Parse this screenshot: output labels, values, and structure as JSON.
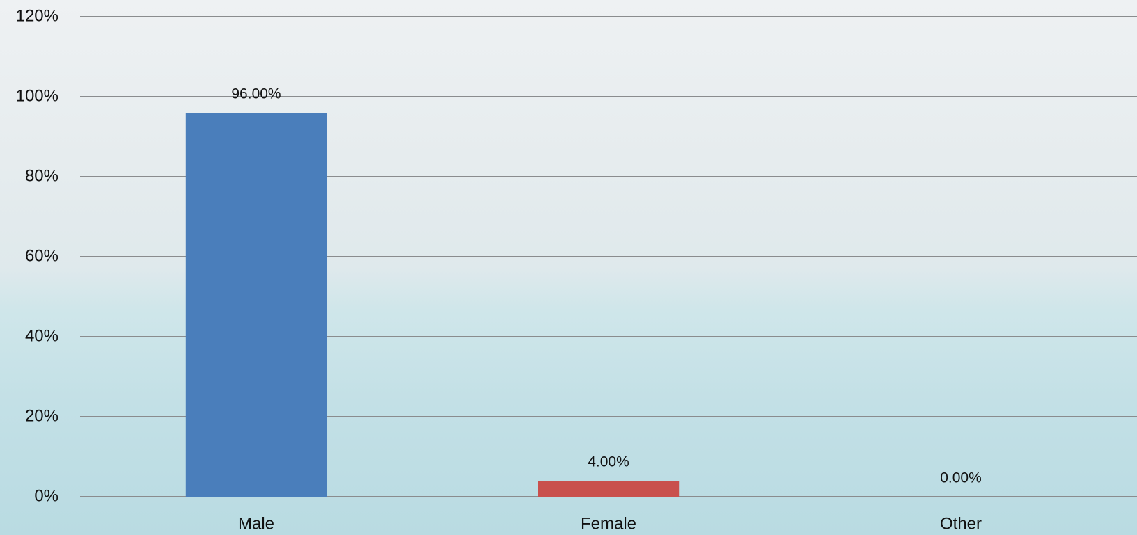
{
  "chart_data": {
    "type": "bar",
    "categories": [
      "Male",
      "Female",
      "Other"
    ],
    "values": [
      96,
      4,
      0
    ],
    "value_labels": [
      "96.00%",
      "4.00%",
      "0.00%"
    ],
    "colors": [
      "#4a7ebb",
      "#c9504d",
      "#9bbb59"
    ],
    "ylim": [
      0,
      120
    ],
    "yticks": [
      {
        "value": 0,
        "label": "0%"
      },
      {
        "value": 20,
        "label": "20%"
      },
      {
        "value": 40,
        "label": "40%"
      },
      {
        "value": 60,
        "label": "60%"
      },
      {
        "value": 80,
        "label": "80%"
      },
      {
        "value": 100,
        "label": "100%"
      },
      {
        "value": 120,
        "label": "120%"
      }
    ],
    "grid": true
  }
}
